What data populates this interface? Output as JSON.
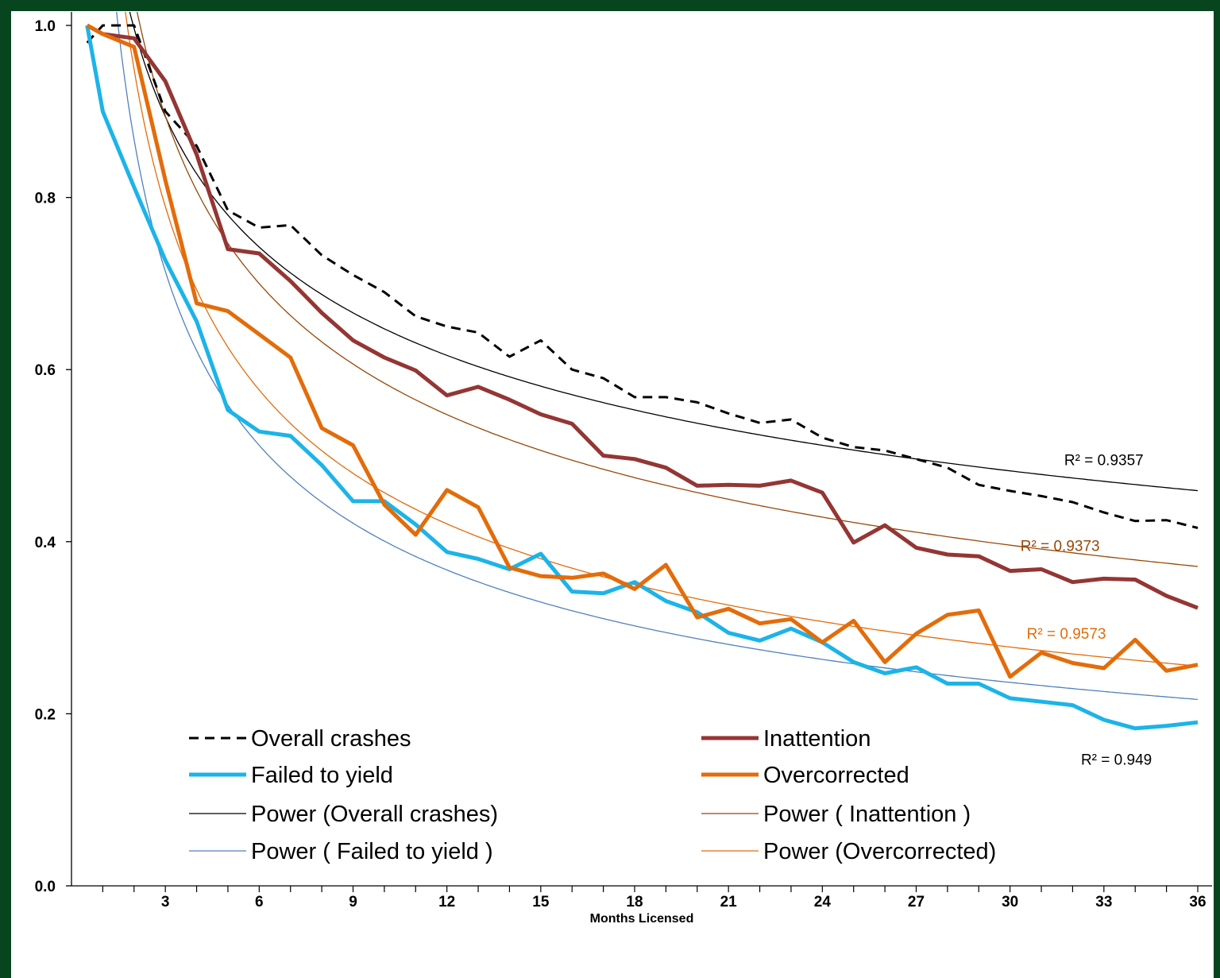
{
  "chart_data": {
    "type": "line",
    "title": "",
    "xlabel": "Months Licensed",
    "ylabel": "",
    "xlim": [
      0,
      36
    ],
    "ylim": [
      0,
      1.0
    ],
    "y_ticks": [
      "0.0",
      "0.2",
      "0.4",
      "0.6",
      "0.8",
      "1.0"
    ],
    "x_ticks": [
      "3",
      "6",
      "9",
      "12",
      "15",
      "18",
      "21",
      "24",
      "27",
      "30",
      "33",
      "36"
    ],
    "grid": false,
    "legend_placement": "bottom-left",
    "series": [
      {
        "name": "Overall crashes",
        "style": "dashed",
        "color": "#000000",
        "width": 3,
        "values": [
          [
            0.5,
            0.98
          ],
          [
            1,
            1.0
          ],
          [
            2,
            1.0
          ],
          [
            3,
            0.9
          ],
          [
            4,
            0.86
          ],
          [
            5,
            0.785
          ],
          [
            6,
            0.765
          ],
          [
            7,
            0.768
          ],
          [
            8,
            0.733
          ],
          [
            9,
            0.71
          ],
          [
            10,
            0.69
          ],
          [
            11,
            0.662
          ],
          [
            12,
            0.65
          ],
          [
            13,
            0.643
          ],
          [
            14,
            0.615
          ],
          [
            15,
            0.634
          ],
          [
            16,
            0.6
          ],
          [
            17,
            0.59
          ],
          [
            18,
            0.568
          ],
          [
            19,
            0.568
          ],
          [
            20,
            0.562
          ],
          [
            21,
            0.549
          ],
          [
            22,
            0.538
          ],
          [
            23,
            0.542
          ],
          [
            24,
            0.521
          ],
          [
            25,
            0.51
          ],
          [
            26,
            0.506
          ],
          [
            27,
            0.496
          ],
          [
            28,
            0.486
          ],
          [
            29,
            0.466
          ],
          [
            30,
            0.459
          ],
          [
            31,
            0.453
          ],
          [
            32,
            0.446
          ],
          [
            33,
            0.434
          ],
          [
            34,
            0.424
          ],
          [
            35,
            0.425
          ],
          [
            36,
            0.416
          ]
        ]
      },
      {
        "name": "Inattention",
        "style": "solid",
        "color": "#943634",
        "width": 5,
        "values": [
          [
            0.5,
            1.0
          ],
          [
            1,
            0.99
          ],
          [
            2,
            0.985
          ],
          [
            3,
            0.935
          ],
          [
            4,
            0.85
          ],
          [
            5,
            0.74
          ],
          [
            6,
            0.735
          ],
          [
            7,
            0.703
          ],
          [
            8,
            0.666
          ],
          [
            9,
            0.634
          ],
          [
            10,
            0.614
          ],
          [
            11,
            0.599
          ],
          [
            12,
            0.57
          ],
          [
            13,
            0.58
          ],
          [
            14,
            0.565
          ],
          [
            15,
            0.548
          ],
          [
            16,
            0.537
          ],
          [
            17,
            0.5
          ],
          [
            18,
            0.496
          ],
          [
            19,
            0.486
          ],
          [
            20,
            0.465
          ],
          [
            21,
            0.466
          ],
          [
            22,
            0.465
          ],
          [
            23,
            0.471
          ],
          [
            24,
            0.457
          ],
          [
            25,
            0.399
          ],
          [
            26,
            0.419
          ],
          [
            27,
            0.393
          ],
          [
            28,
            0.385
          ],
          [
            29,
            0.383
          ],
          [
            30,
            0.366
          ],
          [
            31,
            0.368
          ],
          [
            32,
            0.353
          ],
          [
            33,
            0.357
          ],
          [
            34,
            0.356
          ],
          [
            35,
            0.337
          ],
          [
            36,
            0.323
          ]
        ]
      },
      {
        "name": "Failed to yield",
        "style": "solid",
        "color": "#1cb4e8",
        "width": 5,
        "values": [
          [
            0.5,
            1.0
          ],
          [
            1,
            0.9
          ],
          [
            2,
            0.812
          ],
          [
            3,
            0.727
          ],
          [
            4,
            0.656
          ],
          [
            5,
            0.553
          ],
          [
            6,
            0.528
          ],
          [
            7,
            0.523
          ],
          [
            8,
            0.489
          ],
          [
            9,
            0.447
          ],
          [
            10,
            0.447
          ],
          [
            11,
            0.42
          ],
          [
            12,
            0.388
          ],
          [
            13,
            0.38
          ],
          [
            14,
            0.368
          ],
          [
            15,
            0.386
          ],
          [
            16,
            0.342
          ],
          [
            17,
            0.34
          ],
          [
            18,
            0.353
          ],
          [
            19,
            0.331
          ],
          [
            20,
            0.318
          ],
          [
            21,
            0.294
          ],
          [
            22,
            0.285
          ],
          [
            23,
            0.299
          ],
          [
            24,
            0.283
          ],
          [
            25,
            0.26
          ],
          [
            26,
            0.247
          ],
          [
            27,
            0.254
          ],
          [
            28,
            0.235
          ],
          [
            29,
            0.235
          ],
          [
            30,
            0.218
          ],
          [
            31,
            0.214
          ],
          [
            32,
            0.21
          ],
          [
            33,
            0.193
          ],
          [
            34,
            0.183
          ],
          [
            35,
            0.186
          ],
          [
            36,
            0.19
          ]
        ]
      },
      {
        "name": "Overcorrected",
        "style": "solid",
        "color": "#e36c0a",
        "width": 5,
        "values": [
          [
            0.5,
            1.0
          ],
          [
            1,
            0.99
          ],
          [
            2,
            0.975
          ],
          [
            3,
            0.82
          ],
          [
            4,
            0.677
          ],
          [
            5,
            0.668
          ],
          [
            6,
            0.641
          ],
          [
            7,
            0.614
          ],
          [
            8,
            0.532
          ],
          [
            9,
            0.512
          ],
          [
            10,
            0.443
          ],
          [
            11,
            0.408
          ],
          [
            12,
            0.46
          ],
          [
            13,
            0.44
          ],
          [
            14,
            0.37
          ],
          [
            15,
            0.36
          ],
          [
            16,
            0.358
          ],
          [
            17,
            0.363
          ],
          [
            18,
            0.345
          ],
          [
            19,
            0.373
          ],
          [
            20,
            0.312
          ],
          [
            21,
            0.322
          ],
          [
            22,
            0.305
          ],
          [
            23,
            0.31
          ],
          [
            24,
            0.283
          ],
          [
            25,
            0.308
          ],
          [
            26,
            0.26
          ],
          [
            27,
            0.293
          ],
          [
            28,
            0.315
          ],
          [
            29,
            0.32
          ],
          [
            30,
            0.243
          ],
          [
            31,
            0.271
          ],
          [
            32,
            0.259
          ],
          [
            33,
            0.253
          ],
          [
            34,
            0.286
          ],
          [
            35,
            0.25
          ],
          [
            36,
            0.257
          ]
        ]
      },
      {
        "name": "Power (Overall crashes)",
        "style": "solid",
        "color": "#000000",
        "width": 1.3,
        "trend": {
          "a": 1.2,
          "b": 0.268
        }
      },
      {
        "name": "Power ( Inattention )",
        "style": "solid",
        "color": "#984807",
        "width": 1.3,
        "trend": {
          "a": 1.32,
          "b": 0.354
        }
      },
      {
        "name": "Power ( Failed to yield )",
        "style": "solid",
        "color": "#4f81bd",
        "width": 1.3,
        "trend": {
          "a": 1.21,
          "b": 0.48
        }
      },
      {
        "name": "Power (Overcorrected)",
        "style": "solid",
        "color": "#e36c0a",
        "width": 1.3,
        "trend": {
          "a": 1.3,
          "b": 0.454
        }
      }
    ],
    "annotations": [
      {
        "text": "R² = 0.9357",
        "color": "#000000",
        "x": 33,
        "y": 0.489
      },
      {
        "text": "R² = 0.9373",
        "color": "#984807",
        "x": 31.6,
        "y": 0.389
      },
      {
        "text": "R² = 0.9573",
        "color": "#e36c0a",
        "x": 31.8,
        "y": 0.287
      },
      {
        "text": "R² = 0.949",
        "color": "#000000",
        "x": 33.4,
        "y": 0.141
      }
    ]
  }
}
